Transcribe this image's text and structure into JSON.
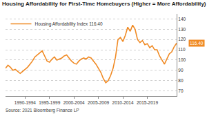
{
  "chart_data": {
    "type": "line",
    "title": "Housing Affordability for First-Time Homebuyers (Higher = More Affordability)",
    "source": "Source: 2021 Bloomberg Finance LP",
    "categories": [
      null,
      null,
      null,
      null,
      null,
      null,
      null,
      null,
      "1990-1994",
      null,
      null,
      null,
      null,
      null,
      null,
      null,
      null,
      null,
      "1995-1999",
      null,
      null,
      null,
      null,
      null,
      null,
      null,
      null,
      null,
      "2000-2004",
      null,
      null,
      null,
      null,
      null,
      null,
      null,
      null,
      null,
      "2005-2009",
      null,
      null,
      null,
      null,
      null,
      null,
      null,
      null,
      null,
      "2010-2014",
      null,
      null,
      null,
      null,
      null,
      null,
      null,
      null,
      null,
      "2015-2019",
      null,
      null,
      null,
      null,
      null,
      null,
      null,
      null,
      null,
      null,
      null,
      null
    ],
    "series": [
      {
        "name": "Housing Affordability Index 116.40",
        "color": "#f08a24",
        "values": [
          92,
          95,
          93,
          90,
          91,
          89,
          87,
          89,
          91,
          93,
          96,
          99,
          103,
          105,
          107,
          109,
          104,
          99,
          98,
          101,
          103,
          100,
          101,
          102,
          104,
          105,
          102,
          99,
          97,
          96,
          99,
          101,
          102,
          101,
          103,
          102,
          99,
          96,
          92,
          88,
          82,
          78,
          80,
          85,
          92,
          103,
          120,
          122,
          118,
          124,
          132,
          128,
          134,
          130,
          120,
          117,
          119,
          115,
          116,
          112,
          114,
          110,
          110,
          104,
          100,
          96,
          101,
          106,
          108,
          113,
          116.4
        ]
      }
    ],
    "ylim": [
      65,
      145
    ],
    "yticks": [
      70,
      80,
      90,
      100,
      110,
      120,
      130,
      140
    ],
    "grid": true,
    "legend": "top-left",
    "annotations": [
      {
        "text": "116.40",
        "y": 116.4
      }
    ]
  }
}
